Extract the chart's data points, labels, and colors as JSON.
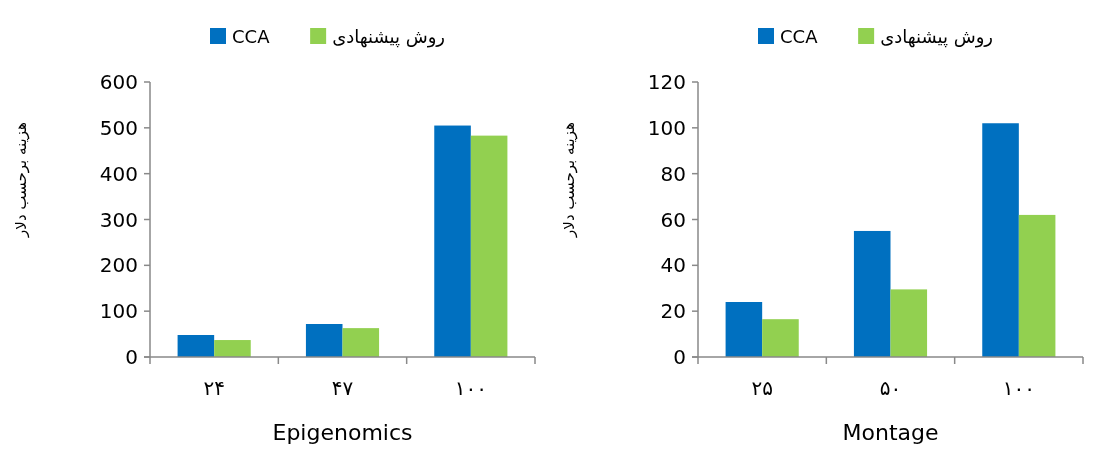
{
  "chart_data": [
    {
      "type": "bar",
      "xlabel": "Epigenomics",
      "ylabel": "هزینه برحسب دلار",
      "categories": [
        "۲۴",
        "۴۷",
        "۱۰۰"
      ],
      "series": [
        {
          "name": "CCA",
          "color": "#0070c0",
          "values": [
            48,
            72,
            505
          ]
        },
        {
          "name": "روش پیشنهادی",
          "color": "#92d050",
          "values": [
            37,
            63,
            483
          ]
        }
      ],
      "ylim": [
        0,
        600
      ],
      "yticks": [
        0,
        100,
        200,
        300,
        400,
        500,
        600
      ],
      "grid": false,
      "legend": "top"
    },
    {
      "type": "bar",
      "xlabel": "Montage",
      "ylabel": "هزینه برحسب دلار",
      "categories": [
        "۲۵",
        "۵۰",
        "۱۰۰"
      ],
      "series": [
        {
          "name": "CCA",
          "color": "#0070c0",
          "values": [
            24,
            55,
            102
          ]
        },
        {
          "name": "روش پیشنهادی",
          "color": "#92d050",
          "values": [
            16.5,
            29.5,
            62
          ]
        }
      ],
      "ylim": [
        0,
        120
      ],
      "yticks": [
        0,
        20,
        40,
        60,
        80,
        100,
        120
      ],
      "grid": false,
      "legend": "top"
    }
  ]
}
